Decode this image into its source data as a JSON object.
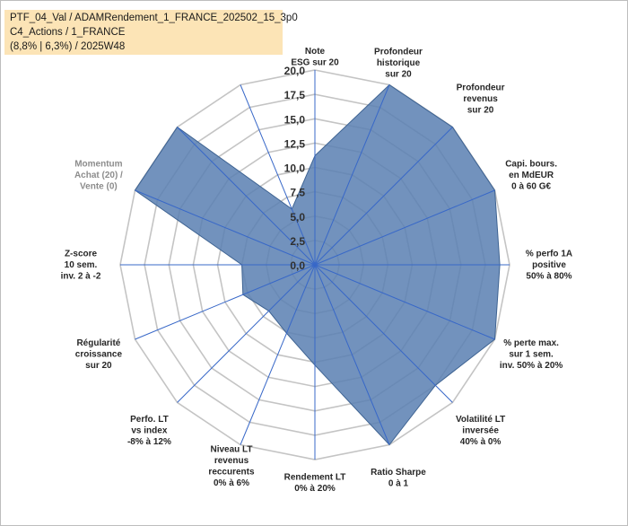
{
  "title": {
    "line1": "PTF_04_Val / ADAMRendement_1_FRANCE_202502_15_3p0",
    "line2": "C4_Actions / 1_FRANCE",
    "line3": "(8,8% | 6,3%) / 2025W48"
  },
  "chart_data": {
    "type": "radar",
    "title": "PTF_04_Val / ADAMRendement_1_FRANCE_202502_15_3p0 C4_Actions / 1_FRANCE (8,8% | 6,3%) / 2025W48",
    "rmin": 0,
    "rmax": 20,
    "tick_step": 2.5,
    "tick_labels": [
      "0,0",
      "2,5",
      "5,0",
      "7,5",
      "10,0",
      "12,5",
      "15,0",
      "17,5",
      "20,0"
    ],
    "series": [
      {
        "name": "PTF_04_Val",
        "color": "#5b80b2",
        "values": [
          11.2,
          20,
          20,
          20,
          19,
          20,
          17.5,
          20,
          10.3,
          7.6,
          6.7,
          8,
          7.5,
          20,
          20,
          6.2
        ]
      }
    ],
    "axes": [
      {
        "label": [
          "Note",
          "ESG sur 20"
        ]
      },
      {
        "label": [
          "Profondeur",
          "historique",
          "sur 20"
        ]
      },
      {
        "label": [
          "Profondeur",
          "revenus",
          "sur 20"
        ]
      },
      {
        "label": [
          "Capi. bours.",
          "en MdEUR",
          "0 à 60 G€"
        ]
      },
      {
        "label": [
          "% perfo 1A",
          "positive",
          "50% à 80%"
        ]
      },
      {
        "label": [
          "% perte max.",
          "sur 1 sem.",
          "inv. 50% à 20%"
        ]
      },
      {
        "label": [
          "Volatilité LT",
          "inversée",
          "40% à 0%"
        ]
      },
      {
        "label": [
          "Ratio Sharpe",
          "0 à 1"
        ]
      },
      {
        "label": [
          "Rendement LT",
          "0% à 20%"
        ]
      },
      {
        "label": [
          "Niveau LT",
          "revenus",
          "reccurents",
          "0% à 6%"
        ]
      },
      {
        "label": [
          "Perfo. LT",
          "vs index",
          "-8% à 12%"
        ]
      },
      {
        "label": [
          "Régularité",
          "croissance",
          "sur 20"
        ]
      },
      {
        "label": [
          "Z-score",
          "10 sem.",
          "inv. 2 à -2"
        ]
      },
      {
        "label": [
          "Momentum",
          "Achat (20) /",
          "Vente (0)"
        ]
      },
      {
        "label": [
          ""
        ]
      },
      {
        "label": [
          ""
        ]
      }
    ]
  }
}
